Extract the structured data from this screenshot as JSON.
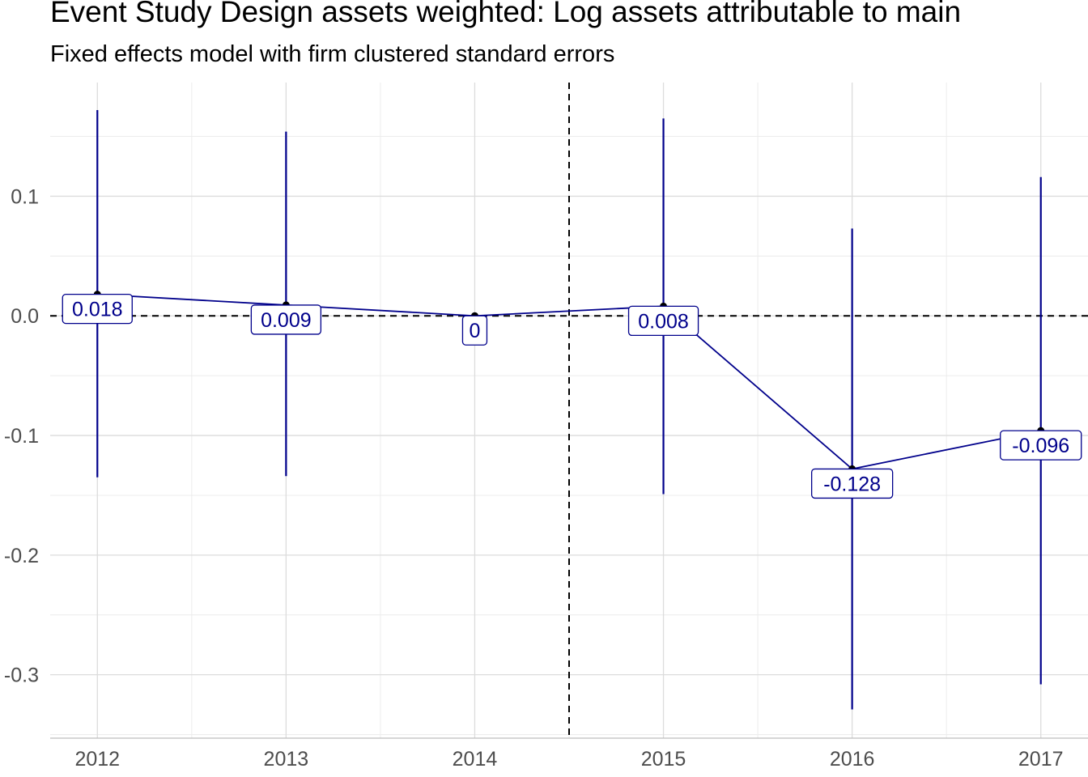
{
  "chart_data": {
    "type": "line",
    "title": "Event Study Design assets weighted: Log assets attributable to main",
    "subtitle": "Fixed effects model with firm clustered standard errors",
    "xlabel": "",
    "ylabel": "",
    "x": [
      2012,
      2013,
      2014,
      2015,
      2016,
      2017
    ],
    "x_tick_labels": [
      "2012",
      "2013",
      "2014",
      "2015",
      "2016",
      "2017"
    ],
    "series": [
      {
        "values": [
          0.018,
          0.009,
          0,
          0.008,
          -0.128,
          -0.096
        ],
        "lower": [
          -0.135,
          -0.134,
          0,
          -0.149,
          -0.329,
          -0.308
        ],
        "upper": [
          0.172,
          0.154,
          0,
          0.165,
          0.073,
          0.116
        ],
        "labels": [
          "0.018",
          "0.009",
          "0",
          "0.008",
          "-0.128",
          "-0.096"
        ],
        "color": "#00008B"
      }
    ],
    "y_ticks": [
      0.1,
      0.0,
      -0.1,
      -0.2,
      -0.3
    ],
    "y_tick_labels": [
      "0.1",
      "0.0",
      "-0.1",
      "-0.2",
      "-0.3"
    ],
    "xlim": [
      2011.75,
      2017.25
    ],
    "ylim": [
      -0.353,
      0.195
    ],
    "reference_lines": {
      "horizontal_y": 0,
      "vertical_x": 2014.5,
      "style": "dashed"
    },
    "grid": true
  }
}
